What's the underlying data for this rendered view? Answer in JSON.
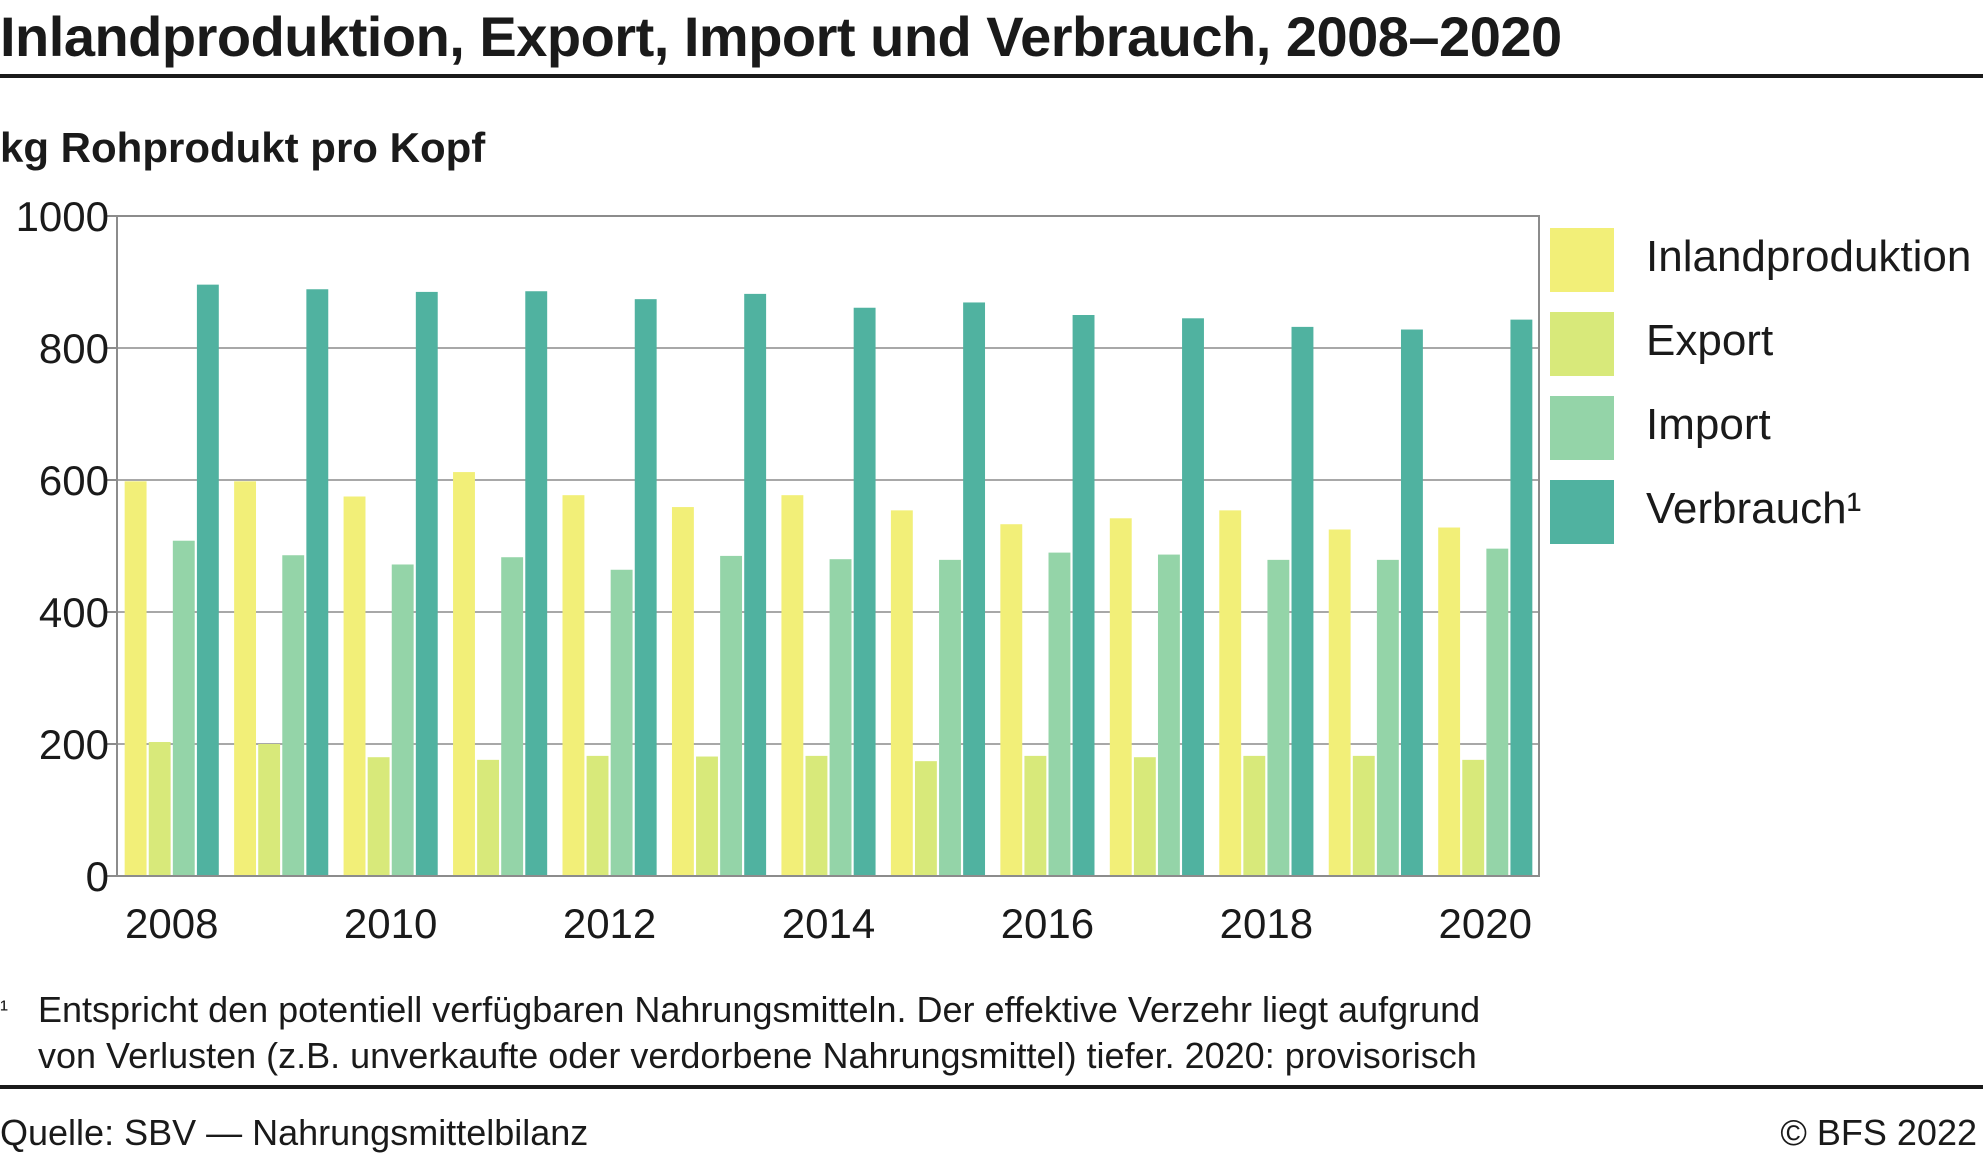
{
  "header": {
    "title": "Inlandproduktion, Export, Import und Verbrauch, 2008–2020",
    "unit_label": "kg Rohprodukt pro Kopf"
  },
  "chart_data": {
    "type": "bar",
    "title": "Inlandproduktion, Export, Import und Verbrauch, 2008–2020",
    "ylabel": "kg Rohprodukt pro Kopf",
    "xlabel": "",
    "ylim": [
      0,
      1000
    ],
    "yticks": [
      "0",
      "200",
      "400",
      "600",
      "800",
      "1000"
    ],
    "grid": true,
    "legend_position": "right",
    "categories": [
      "2008",
      "2009",
      "2010",
      "2011",
      "2012",
      "2013",
      "2014",
      "2015",
      "2016",
      "2017",
      "2018",
      "2019",
      "2020"
    ],
    "xtick_labels": [
      "2008",
      "",
      "2010",
      "",
      "2012",
      "",
      "2014",
      "",
      "2016",
      "",
      "2018",
      "",
      "2020"
    ],
    "series": [
      {
        "name": "Inlandproduktion",
        "color": "#f2ef78",
        "values": [
          598,
          598,
          575,
          612,
          577,
          559,
          577,
          554,
          533,
          542,
          554,
          525,
          528
        ]
      },
      {
        "name": "Export",
        "color": "#d8e97a",
        "values": [
          203,
          200,
          180,
          176,
          182,
          181,
          182,
          174,
          182,
          180,
          182,
          182,
          176
        ]
      },
      {
        "name": "Import",
        "color": "#94d4a8",
        "values": [
          508,
          486,
          472,
          483,
          464,
          485,
          480,
          479,
          490,
          487,
          479,
          479,
          496
        ]
      },
      {
        "name": "Verbrauch¹",
        "color": "#50b2a0",
        "values": [
          896,
          889,
          885,
          886,
          874,
          882,
          861,
          869,
          850,
          845,
          832,
          828,
          843
        ]
      }
    ]
  },
  "footnote": {
    "marker": "¹",
    "line1": "Entspricht den potentiell verfügbaren Nahrungsmitteln. Der effektive Verzehr liegt aufgrund",
    "line2": "von Verlusten (z.B. unverkaufte oder verdorbene Nahrungsmittel) tiefer. 2020: provisorisch"
  },
  "footer": {
    "source": "Quelle: SBV — Nahrungsmittelbilanz",
    "copyright": "© BFS 2022"
  },
  "colors": {
    "grid": "#a8a8a8",
    "axis_frame": "#8c8c8c"
  }
}
